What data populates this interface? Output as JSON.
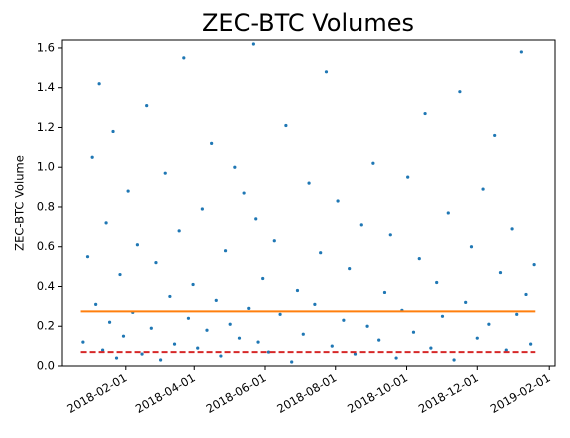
{
  "chart_data": {
    "type": "scatter",
    "title": "ZEC-BTC Volumes",
    "y_label": "ZEC-BTC Volume",
    "xlim": [
      "2017-12-08",
      "2019-02-06"
    ],
    "xticks": [
      "2018-02-01",
      "2018-04-01",
      "2018-06-01",
      "2018-08-01",
      "2018-10-01",
      "2018-12-01",
      "2019-02-01"
    ],
    "ylim": [
      0,
      1.64
    ],
    "yticks": [
      {
        "value": 0,
        "label": "0.0"
      },
      0.2,
      0.4,
      0.6,
      0.8,
      {
        "value": 1,
        "label": "1.0"
      },
      1.2,
      1.4,
      1.6
    ],
    "series": [
      {
        "color": "#1f77b4",
        "x": [
          "2017-12-26",
          "2017-12-30",
          "2018-01-03",
          "2018-01-06",
          "2018-01-09",
          "2018-01-12",
          "2018-01-15",
          "2018-01-18",
          "2018-01-21",
          "2018-01-24",
          "2018-01-27",
          "2018-01-30",
          "2018-02-03",
          "2018-02-07",
          "2018-02-11",
          "2018-02-15",
          "2018-02-19",
          "2018-02-23",
          "2018-02-27",
          "2018-03-03",
          "2018-03-07",
          "2018-03-11",
          "2018-03-15",
          "2018-03-19",
          "2018-03-23",
          "2018-03-27",
          "2018-03-31",
          "2018-04-04",
          "2018-04-08",
          "2018-04-12",
          "2018-04-16",
          "2018-04-20",
          "2018-04-24",
          "2018-04-28",
          "2018-05-02",
          "2018-05-06",
          "2018-05-10",
          "2018-05-14",
          "2018-05-18",
          "2018-05-22",
          "2018-05-24",
          "2018-05-26",
          "2018-05-30",
          "2018-06-04",
          "2018-06-09",
          "2018-06-14",
          "2018-06-19",
          "2018-06-24",
          "2018-06-29",
          "2018-07-04",
          "2018-07-09",
          "2018-07-14",
          "2018-07-19",
          "2018-07-24",
          "2018-07-29",
          "2018-08-03",
          "2018-08-08",
          "2018-08-13",
          "2018-08-18",
          "2018-08-23",
          "2018-08-28",
          "2018-09-02",
          "2018-09-07",
          "2018-09-12",
          "2018-09-17",
          "2018-09-22",
          "2018-09-27",
          "2018-10-02",
          "2018-10-07",
          "2018-10-12",
          "2018-10-17",
          "2018-10-22",
          "2018-10-27",
          "2018-11-01",
          "2018-11-06",
          "2018-11-11",
          "2018-11-16",
          "2018-11-21",
          "2018-11-26",
          "2018-12-01",
          "2018-12-06",
          "2018-12-11",
          "2018-12-16",
          "2018-12-21",
          "2018-12-26",
          "2018-12-31",
          "2019-01-04",
          "2019-01-08",
          "2019-01-12",
          "2019-01-16",
          "2019-01-19"
        ],
        "values": [
          0.12,
          0.55,
          1.05,
          0.31,
          1.42,
          0.08,
          0.72,
          0.22,
          1.18,
          0.04,
          0.46,
          0.15,
          0.88,
          0.27,
          0.61,
          0.06,
          1.31,
          0.19,
          0.52,
          0.03,
          0.97,
          0.35,
          0.11,
          0.68,
          1.55,
          0.24,
          0.41,
          0.09,
          0.79,
          0.18,
          1.12,
          0.33,
          0.05,
          0.58,
          0.21,
          1.0,
          0.14,
          0.87,
          0.29,
          1.62,
          0.74,
          0.12,
          0.44,
          0.07,
          0.63,
          0.26,
          1.21,
          0.02,
          0.38,
          0.16,
          0.92,
          0.31,
          0.57,
          1.48,
          0.1,
          0.83,
          0.23,
          0.49,
          0.06,
          0.71,
          0.2,
          1.02,
          0.13,
          0.37,
          0.66,
          0.04,
          0.28,
          0.95,
          0.17,
          0.54,
          1.27,
          0.09,
          0.42,
          0.25,
          0.77,
          0.03,
          1.38,
          0.32,
          0.6,
          0.14,
          0.89,
          0.21,
          1.16,
          0.47,
          0.08,
          0.69,
          0.26,
          1.58,
          0.36,
          0.11,
          0.51
        ]
      },
      {
        "type": "line",
        "color": "#ff7f0e",
        "x": [
          "2017-12-24",
          "2019-01-20"
        ],
        "values": [
          0.275,
          0.275
        ]
      },
      {
        "type": "line",
        "color": "#d62728",
        "dashed": true,
        "x": [
          "2017-12-24",
          "2019-01-20"
        ],
        "values": [
          0.07,
          0.07
        ]
      }
    ]
  }
}
